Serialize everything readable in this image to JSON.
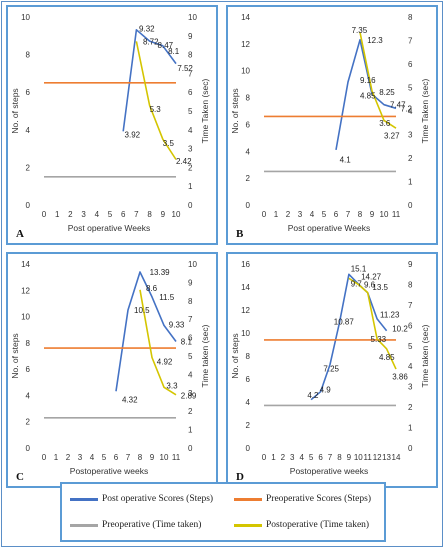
{
  "colors": {
    "post_steps": "#4472c4",
    "pre_steps": "#ed7d31",
    "pre_time": "#a5a5a5",
    "post_time": "#d4c500",
    "border": "#5b9bd5"
  },
  "legend": [
    {
      "label": "Post operative Scores (Steps)",
      "color": "#4472c4"
    },
    {
      "label": "Preoperative Scores (Steps)",
      "color": "#ed7d31"
    },
    {
      "label": "Preoperative (Time taken)",
      "color": "#a5a5a5"
    },
    {
      "label": "Postoperative (Time taken)",
      "color": "#d4c500"
    }
  ],
  "chart_data": [
    {
      "panel_label": "A",
      "type": "line",
      "xlabel": "Post operative Weeks",
      "ylabel_left": "No. of steps",
      "ylabel_right": "Time Taken (sec)",
      "x_ticks": [
        0,
        1,
        2,
        3,
        4,
        5,
        6,
        7,
        8,
        9,
        10
      ],
      "ylim_left": [
        0,
        10
      ],
      "ylim_right": [
        0,
        10
      ],
      "yticks_left": [
        0,
        2,
        4,
        6,
        8,
        10
      ],
      "yticks_right": [
        0,
        1,
        2,
        3,
        4,
        5,
        6,
        7,
        8,
        9,
        10
      ],
      "series": [
        {
          "name": "Post operative Scores (Steps)",
          "axis": "left",
          "color": "#4472c4",
          "x": [
            6,
            7,
            8,
            9,
            10
          ],
          "y": [
            3.92,
            9.32,
            8.72,
            8.47,
            7.52
          ]
        },
        {
          "name": "Preoperative Scores (Steps)",
          "axis": "left",
          "color": "#ed7d31",
          "x": [
            0,
            10
          ],
          "y": [
            6.5,
            6.5
          ]
        },
        {
          "name": "Preoperative (Time taken)",
          "axis": "left",
          "color": "#a5a5a5",
          "x": [
            0,
            10
          ],
          "y": [
            1.5,
            1.5
          ]
        },
        {
          "name": "Postoperative (Time taken)",
          "axis": "right",
          "color": "#d4c500",
          "x": [
            7,
            8,
            9,
            10
          ],
          "y": [
            8.7,
            5.3,
            3.5,
            2.42
          ]
        }
      ],
      "data_labels": [
        {
          "text": "9.32",
          "x": 7.2,
          "y": 9.4,
          "axis": "left"
        },
        {
          "text": "8.72",
          "x": 7.5,
          "y": 8.7,
          "axis": "left"
        },
        {
          "text": "8.47",
          "x": 8.6,
          "y": 8.5,
          "axis": "left"
        },
        {
          "text": "8.1",
          "x": 9.4,
          "y": 8.2,
          "axis": "left"
        },
        {
          "text": "7.52",
          "x": 10.1,
          "y": 7.3,
          "axis": "left"
        },
        {
          "text": "3.92",
          "x": 6.1,
          "y": 3.75,
          "axis": "left"
        },
        {
          "text": "5.3",
          "x": 8.0,
          "y": 5.1,
          "axis": "right"
        },
        {
          "text": "3.5",
          "x": 9.0,
          "y": 3.3,
          "axis": "right"
        },
        {
          "text": "2.42",
          "x": 10.0,
          "y": 2.35,
          "axis": "right"
        }
      ]
    },
    {
      "panel_label": "B",
      "type": "line",
      "xlabel": "Post operative Weeks",
      "ylabel_left": "No. of steps",
      "ylabel_right": "Time Taken (sec)",
      "x_ticks": [
        0,
        1,
        2,
        3,
        4,
        5,
        6,
        7,
        8,
        9,
        10,
        11
      ],
      "ylim_left": [
        0,
        14
      ],
      "ylim_right": [
        0,
        8
      ],
      "yticks_left": [
        0,
        2,
        4,
        6,
        8,
        10,
        12,
        14
      ],
      "yticks_right": [
        0,
        1,
        2,
        3,
        4,
        5,
        6,
        7,
        8
      ],
      "series": [
        {
          "name": "Post operative Scores (Steps)",
          "axis": "left",
          "color": "#4472c4",
          "x": [
            6,
            7,
            8,
            9,
            10,
            11
          ],
          "y": [
            4.1,
            9.16,
            12.3,
            8.25,
            7.47,
            7.2
          ]
        },
        {
          "name": "Preoperative Scores (Steps)",
          "axis": "left",
          "color": "#ed7d31",
          "x": [
            0,
            11
          ],
          "y": [
            6.6,
            6.6
          ]
        },
        {
          "name": "Preoperative (Time taken)",
          "axis": "left",
          "color": "#a5a5a5",
          "x": [
            0,
            11
          ],
          "y": [
            2.5,
            2.5
          ]
        },
        {
          "name": "Postoperative (Time taken)",
          "axis": "right",
          "color": "#d4c500",
          "x": [
            8,
            9,
            10,
            11
          ],
          "y": [
            7.35,
            4.85,
            3.6,
            3.27
          ]
        }
      ],
      "data_labels": [
        {
          "text": "7.35",
          "x": 7.3,
          "y": 7.45,
          "axis": "right"
        },
        {
          "text": "12.3",
          "x": 8.6,
          "y": 12.3,
          "axis": "left"
        },
        {
          "text": "9.16",
          "x": 8.0,
          "y": 9.3,
          "axis": "left"
        },
        {
          "text": "4.85",
          "x": 8.0,
          "y": 4.65,
          "axis": "right"
        },
        {
          "text": "8.25",
          "x": 9.6,
          "y": 8.4,
          "axis": "left"
        },
        {
          "text": "7.47",
          "x": 10.5,
          "y": 7.5,
          "axis": "left"
        },
        {
          "text": "7.2",
          "x": 11.4,
          "y": 7.2,
          "axis": "left"
        },
        {
          "text": "3.6",
          "x": 9.6,
          "y": 3.5,
          "axis": "right"
        },
        {
          "text": "3.27",
          "x": 10.0,
          "y": 2.95,
          "axis": "right"
        },
        {
          "text": "4.1",
          "x": 6.3,
          "y": 3.4,
          "axis": "left"
        }
      ]
    },
    {
      "panel_label": "C",
      "type": "line",
      "xlabel": "Postoperative weeks",
      "ylabel_left": "No. of steps",
      "ylabel_right": "Time taken (sec)",
      "x_ticks": [
        0,
        1,
        2,
        3,
        4,
        5,
        6,
        7,
        8,
        9,
        10,
        11
      ],
      "ylim_left": [
        0,
        14
      ],
      "ylim_right": [
        0,
        10
      ],
      "yticks_left": [
        0,
        2,
        4,
        6,
        8,
        10,
        12,
        14
      ],
      "yticks_right": [
        0,
        1,
        2,
        3,
        4,
        5,
        6,
        7,
        8,
        9,
        10
      ],
      "series": [
        {
          "name": "Post operative Scores (Steps)",
          "axis": "left",
          "color": "#4472c4",
          "x": [
            6,
            7,
            8,
            9,
            10,
            11
          ],
          "y": [
            4.32,
            10.5,
            13.39,
            11.5,
            9.33,
            8.1
          ]
        },
        {
          "name": "Preoperative Scores (Steps)",
          "axis": "left",
          "color": "#ed7d31",
          "x": [
            0,
            11
          ],
          "y": [
            7.6,
            7.6
          ]
        },
        {
          "name": "Preoperative (Time taken)",
          "axis": "left",
          "color": "#a5a5a5",
          "x": [
            0,
            11
          ],
          "y": [
            2.3,
            2.3
          ]
        },
        {
          "name": "Postoperative (Time taken)",
          "axis": "right",
          "color": "#d4c500",
          "x": [
            8,
            9,
            10,
            11
          ],
          "y": [
            8.6,
            4.92,
            3.3,
            2.89
          ]
        }
      ],
      "data_labels": [
        {
          "text": "13.39",
          "x": 8.8,
          "y": 13.4,
          "axis": "left"
        },
        {
          "text": "8.6",
          "x": 8.5,
          "y": 8.7,
          "axis": "right"
        },
        {
          "text": "10.5",
          "x": 7.5,
          "y": 10.5,
          "axis": "left"
        },
        {
          "text": "11.5",
          "x": 9.6,
          "y": 11.5,
          "axis": "left"
        },
        {
          "text": "9.33",
          "x": 10.4,
          "y": 9.4,
          "axis": "left"
        },
        {
          "text": "8.1",
          "x": 11.4,
          "y": 8.1,
          "axis": "left"
        },
        {
          "text": "4.92",
          "x": 9.4,
          "y": 4.7,
          "axis": "right"
        },
        {
          "text": "3.3",
          "x": 10.2,
          "y": 3.4,
          "axis": "right"
        },
        {
          "text": "2.89",
          "x": 11.4,
          "y": 2.85,
          "axis": "right"
        },
        {
          "text": "4.32",
          "x": 6.5,
          "y": 3.7,
          "axis": "left"
        }
      ]
    },
    {
      "panel_label": "D",
      "type": "line",
      "xlabel": "Postoperative weeks",
      "ylabel_left": "No. of steps",
      "ylabel_right": "Time taken (sec)",
      "x_ticks": [
        0,
        1,
        2,
        3,
        4,
        5,
        6,
        7,
        8,
        9,
        10,
        11,
        12,
        13,
        14
      ],
      "ylim_left": [
        0,
        16
      ],
      "ylim_right": [
        0,
        9
      ],
      "yticks_left": [
        0,
        2,
        4,
        6,
        8,
        10,
        12,
        14,
        16
      ],
      "yticks_right": [
        0,
        1,
        2,
        3,
        4,
        5,
        6,
        7,
        8,
        9
      ],
      "series": [
        {
          "name": "Post operative Scores (Steps)",
          "axis": "left",
          "color": "#4472c4",
          "x": [
            5,
            6,
            7,
            8,
            9,
            10,
            11,
            12,
            13
          ],
          "y": [
            4.2,
            4.9,
            7.25,
            10.87,
            15.1,
            14.27,
            13.5,
            11.23,
            10.2
          ]
        },
        {
          "name": "Preoperative Scores (Steps)",
          "axis": "left",
          "color": "#ed7d31",
          "x": [
            0,
            14
          ],
          "y": [
            9.4,
            9.4
          ]
        },
        {
          "name": "Preoperative (Time taken)",
          "axis": "left",
          "color": "#a5a5a5",
          "x": [
            0,
            14
          ],
          "y": [
            3.7,
            3.7
          ]
        },
        {
          "name": "Postoperative (Time taken)",
          "axis": "right",
          "color": "#d4c500",
          "x": [
            9,
            10,
            11,
            12,
            13,
            14
          ],
          "y": [
            8.3,
            8.0,
            7.6,
            5.33,
            4.85,
            3.86
          ]
        }
      ],
      "data_labels": [
        {
          "text": "15.1",
          "x": 9.2,
          "y": 15.6,
          "axis": "left"
        },
        {
          "text": "14.27",
          "x": 10.3,
          "y": 14.9,
          "axis": "left"
        },
        {
          "text": "13.5",
          "x": 11.5,
          "y": 14.0,
          "axis": "left"
        },
        {
          "text": "9.7",
          "x": 9.2,
          "y": 14.3,
          "axis": "left"
        },
        {
          "text": "9.6",
          "x": 10.6,
          "y": 14.2,
          "axis": "left"
        },
        {
          "text": "10.87",
          "x": 7.4,
          "y": 11.0,
          "axis": "left"
        },
        {
          "text": "11.23",
          "x": 12.3,
          "y": 11.6,
          "axis": "left"
        },
        {
          "text": "10.2",
          "x": 13.6,
          "y": 10.4,
          "axis": "left"
        },
        {
          "text": "7.25",
          "x": 6.3,
          "y": 6.9,
          "axis": "left"
        },
        {
          "text": "4.9",
          "x": 5.9,
          "y": 5.1,
          "axis": "left"
        },
        {
          "text": "4.2",
          "x": 4.6,
          "y": 4.6,
          "axis": "left"
        },
        {
          "text": "5.33",
          "x": 11.3,
          "y": 5.33,
          "axis": "right"
        },
        {
          "text": "4.85",
          "x": 12.2,
          "y": 4.45,
          "axis": "right"
        },
        {
          "text": "3.86",
          "x": 13.6,
          "y": 3.5,
          "axis": "right"
        }
      ]
    }
  ]
}
